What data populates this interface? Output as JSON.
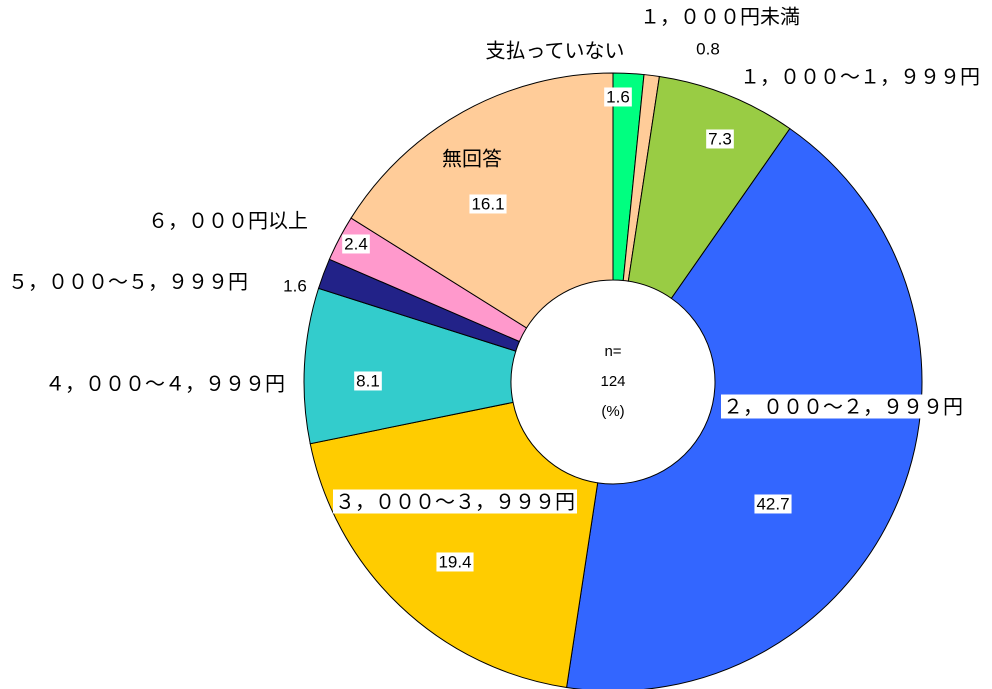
{
  "chart_data": {
    "type": "donut",
    "categories": [
      "支払っていない",
      "１，０００円未満",
      "１，０００～１，９９９円",
      "２，０００～２，９９９円",
      "３，０００～３，９９９円",
      "４，０００～４，９９９円",
      "５，０００～５，９９９円",
      "６，０００円以上",
      "無回答"
    ],
    "values": [
      1.6,
      0.8,
      7.3,
      42.7,
      19.4,
      8.1,
      1.6,
      2.4,
      16.1
    ],
    "colors": [
      "#00ff80",
      "#ffcc99",
      "#99cc44",
      "#3366ff",
      "#ffcc00",
      "#33cccc",
      "#222288",
      "#ff99cc",
      "#ffcc99"
    ],
    "annotations": [
      "n=",
      "124",
      "(%)"
    ]
  }
}
